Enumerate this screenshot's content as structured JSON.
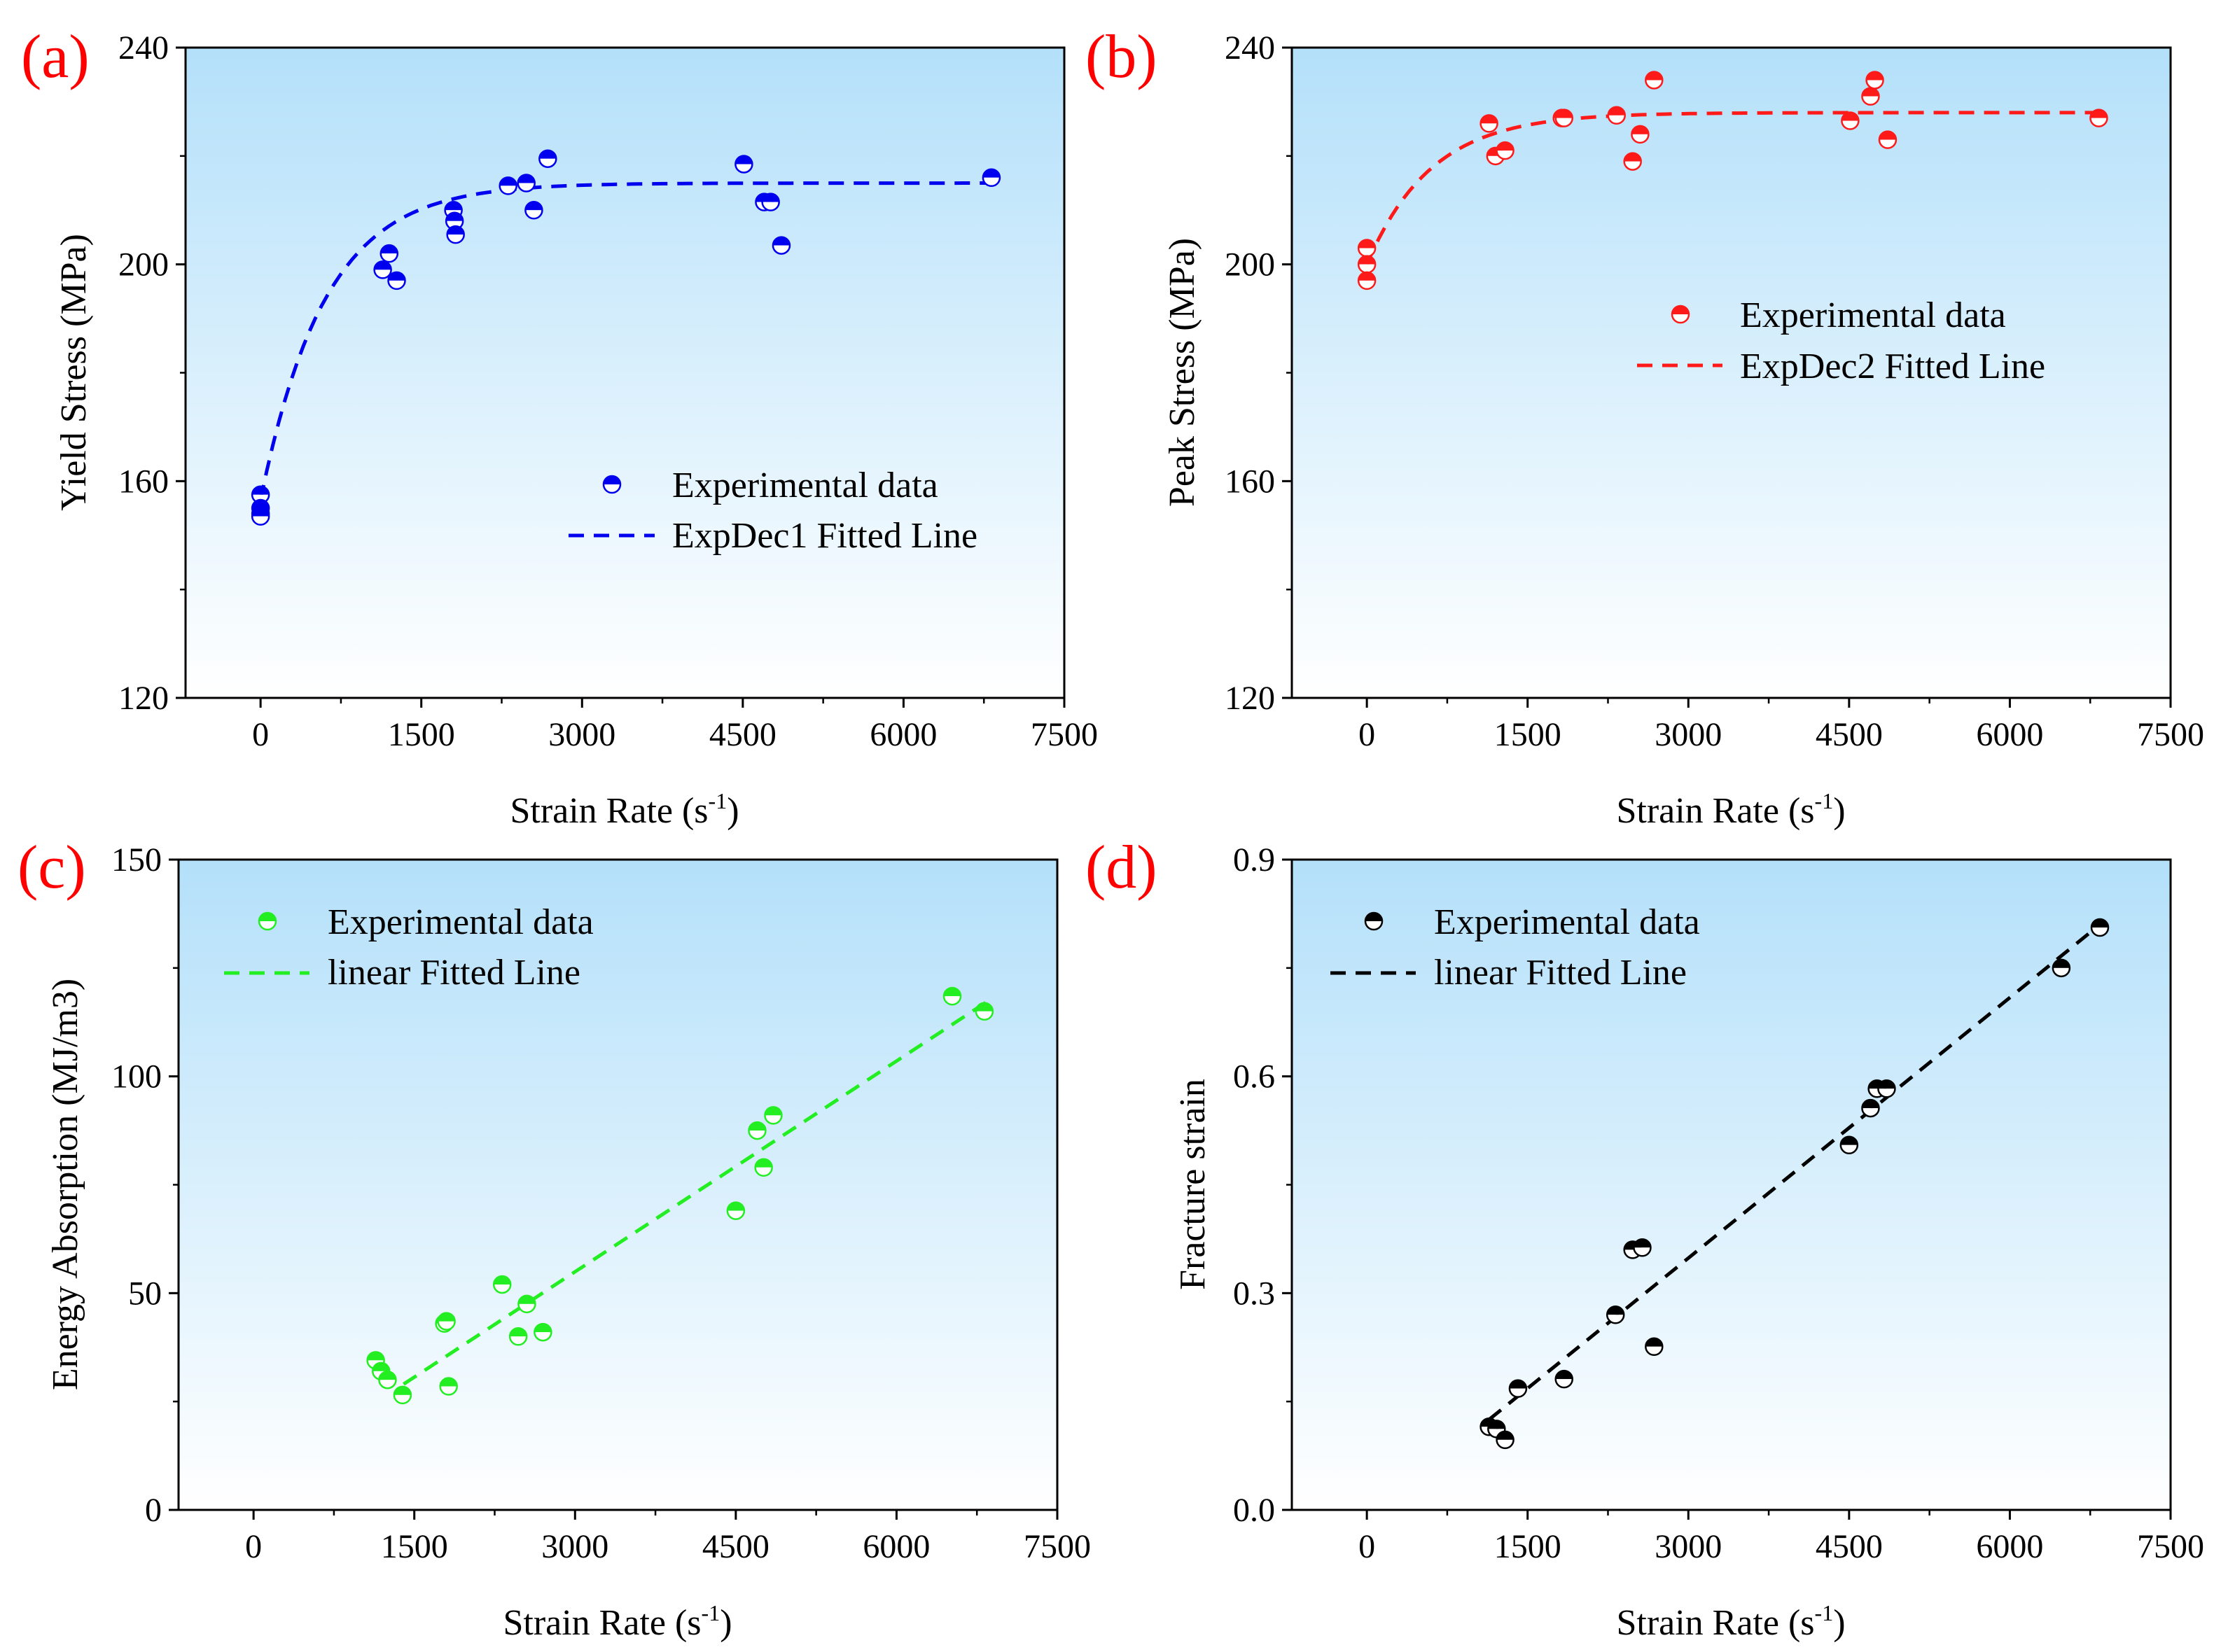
{
  "figure": {
    "background": "#ffffff",
    "panel_top_color": "#b4e0fa",
    "panel_bottom_color": "#ffffff"
  },
  "chart_data": [
    {
      "panel": "(a)",
      "type": "scatter",
      "xlabel": "Strain Rate (s",
      "xlabel_sup": "-1",
      "xlabel_end": ")",
      "ylabel": "Yield Stress (MPa)",
      "xlim": [
        -700,
        7500
      ],
      "ylim": [
        120,
        240
      ],
      "xticks": [
        0,
        1500,
        3000,
        4500,
        6000,
        7500
      ],
      "yticks": [
        120,
        160,
        200,
        240
      ],
      "color": "#0000ee",
      "marker": "half-top",
      "series": [
        {
          "name": "Experimental data",
          "points": [
            [
              0,
              157.5
            ],
            [
              0,
              155
            ],
            [
              0,
              154
            ],
            [
              0,
              153.5
            ],
            [
              1140,
              199
            ],
            [
              1200,
              202
            ],
            [
              1270,
              197
            ],
            [
              1800,
              210
            ],
            [
              1810,
              208
            ],
            [
              1820,
              205.5
            ],
            [
              2310,
              214.5
            ],
            [
              2480,
              215
            ],
            [
              2550,
              210
            ],
            [
              2680,
              219.5
            ],
            [
              4510,
              218.5
            ],
            [
              4700,
              211.5
            ],
            [
              4760,
              211.5
            ],
            [
              4860,
              203.5
            ],
            [
              6820,
              216
            ]
          ]
        },
        {
          "name": "ExpDec1 Fitted Line",
          "style": "dashed",
          "fit": {
            "model": "expdec1",
            "x0": 0,
            "x1": 6830,
            "y0": 215.0,
            "A": -58.5,
            "t": 600
          }
        }
      ],
      "legend": {
        "position": "center-right"
      }
    },
    {
      "panel": "(b)",
      "type": "scatter",
      "xlabel": "Strain Rate (s",
      "xlabel_sup": "-1",
      "xlabel_end": ")",
      "ylabel": "Peak Stress (MPa)",
      "xlim": [
        -700,
        7500
      ],
      "ylim": [
        120,
        240
      ],
      "xticks": [
        0,
        1500,
        3000,
        4500,
        6000,
        7500
      ],
      "yticks": [
        120,
        160,
        200,
        240
      ],
      "color": "#ff1a1a",
      "marker": "half-top",
      "series": [
        {
          "name": "Experimental data",
          "points": [
            [
              0,
              203
            ],
            [
              0,
              200
            ],
            [
              0,
              197
            ],
            [
              1140,
              226
            ],
            [
              1200,
              220
            ],
            [
              1290,
              221
            ],
            [
              1820,
              227
            ],
            [
              1840,
              227
            ],
            [
              2330,
              227.5
            ],
            [
              2480,
              219
            ],
            [
              2550,
              224
            ],
            [
              2680,
              234
            ],
            [
              4510,
              226.5
            ],
            [
              4700,
              231
            ],
            [
              4740,
              234
            ],
            [
              4860,
              223
            ],
            [
              6830,
              227
            ]
          ]
        },
        {
          "name": "ExpDec2 Fitted Line",
          "style": "dashed",
          "fit": {
            "model": "expdec1",
            "x0": 0,
            "x1": 6830,
            "y0": 228.0,
            "A": -28.0,
            "t": 600
          }
        }
      ],
      "legend": {
        "position": "upper-right"
      }
    },
    {
      "panel": "(c)",
      "type": "scatter",
      "xlabel": "Strain Rate (s",
      "xlabel_sup": "-1",
      "xlabel_end": ")",
      "ylabel": "Energy Absorption (MJ/m3)",
      "xlim": [
        -700,
        7500
      ],
      "ylim": [
        0,
        150
      ],
      "xticks": [
        0,
        1500,
        3000,
        4500,
        6000,
        7500
      ],
      "yticks": [
        0,
        50,
        100,
        150
      ],
      "color": "#22ee22",
      "marker": "half-top",
      "series": [
        {
          "name": "Experimental data",
          "points": [
            [
              1140,
              34.5
            ],
            [
              1190,
              32
            ],
            [
              1250,
              30
            ],
            [
              1390,
              26.5
            ],
            [
              1780,
              43
            ],
            [
              1800,
              43.5
            ],
            [
              1820,
              28.5
            ],
            [
              2320,
              52
            ],
            [
              2470,
              40
            ],
            [
              2550,
              47.5
            ],
            [
              2700,
              41
            ],
            [
              4500,
              69
            ],
            [
              4700,
              87.5
            ],
            [
              4760,
              79
            ],
            [
              4850,
              91
            ],
            [
              6520,
              118.5
            ],
            [
              6820,
              115
            ]
          ]
        },
        {
          "name": "linear Fitted Line",
          "style": "dashed",
          "fit": {
            "model": "linear",
            "x0": 1400,
            "x1": 6830,
            "y_start": 29.0,
            "y_end": 117.0
          }
        }
      ],
      "legend": {
        "position": "upper-left"
      }
    },
    {
      "panel": "(d)",
      "type": "scatter",
      "xlabel": "Strain Rate (s",
      "xlabel_sup": "-1",
      "xlabel_end": ")",
      "ylabel": "Fracture strain",
      "xlim": [
        -700,
        7500
      ],
      "ylim": [
        0.0,
        0.9
      ],
      "xticks": [
        0,
        1500,
        3000,
        4500,
        6000,
        7500
      ],
      "yticks": [
        0.0,
        0.3,
        0.6,
        0.9
      ],
      "yticklabels": [
        "0.0",
        "0.3",
        "0.6",
        "0.9"
      ],
      "color": "#000000",
      "marker": "half-top",
      "series": [
        {
          "name": "Experimental data",
          "points": [
            [
              1140,
              0.115
            ],
            [
              1210,
              0.112
            ],
            [
              1290,
              0.097
            ],
            [
              1410,
              0.168
            ],
            [
              1840,
              0.181
            ],
            [
              2320,
              0.27
            ],
            [
              2480,
              0.36
            ],
            [
              2570,
              0.363
            ],
            [
              2680,
              0.226
            ],
            [
              4500,
              0.505
            ],
            [
              4700,
              0.556
            ],
            [
              4760,
              0.583
            ],
            [
              4850,
              0.583
            ],
            [
              6480,
              0.75
            ],
            [
              6840,
              0.806
            ]
          ]
        },
        {
          "name": "linear Fitted Line",
          "style": "dashed",
          "fit": {
            "model": "linear",
            "x0": 1140,
            "x1": 6840,
            "y_start": 0.125,
            "y_end": 0.81
          }
        }
      ],
      "legend": {
        "position": "upper-left"
      }
    }
  ]
}
